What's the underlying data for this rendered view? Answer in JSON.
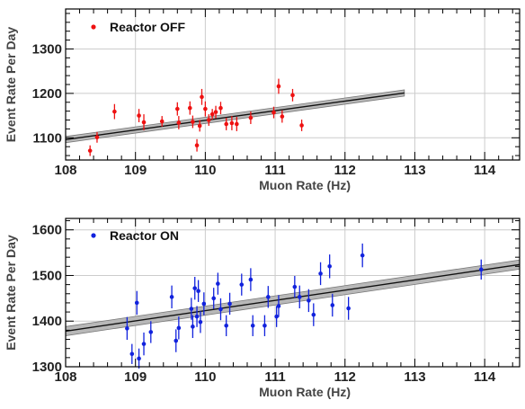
{
  "chart_data": [
    {
      "type": "scatter",
      "xlabel": "Muon Rate (Hz)",
      "ylabel": "Event Rate Per Day",
      "xlim": [
        108,
        114.5
      ],
      "ylim": [
        1050,
        1390
      ],
      "xticks": [
        108,
        109,
        110,
        111,
        112,
        113,
        114
      ],
      "yticks": [
        1100,
        1200,
        1300
      ],
      "grid": true,
      "legend_position": "top-left",
      "series": [
        {
          "name": "Reactor OFF",
          "color": "#ee1111",
          "points": [
            {
              "x": 108.35,
              "y": 1071,
              "err": 12
            },
            {
              "x": 108.45,
              "y": 1101,
              "err": 12
            },
            {
              "x": 108.7,
              "y": 1159,
              "err": 17
            },
            {
              "x": 109.05,
              "y": 1150,
              "err": 15
            },
            {
              "x": 109.12,
              "y": 1135,
              "err": 18
            },
            {
              "x": 109.38,
              "y": 1137,
              "err": 12
            },
            {
              "x": 109.6,
              "y": 1165,
              "err": 15
            },
            {
              "x": 109.62,
              "y": 1134,
              "err": 15
            },
            {
              "x": 109.78,
              "y": 1167,
              "err": 15
            },
            {
              "x": 109.82,
              "y": 1136,
              "err": 14
            },
            {
              "x": 109.88,
              "y": 1083,
              "err": 14
            },
            {
              "x": 109.92,
              "y": 1127,
              "err": 13
            },
            {
              "x": 109.95,
              "y": 1192,
              "err": 18
            },
            {
              "x": 110.0,
              "y": 1165,
              "err": 17
            },
            {
              "x": 110.05,
              "y": 1140,
              "err": 13
            },
            {
              "x": 110.1,
              "y": 1153,
              "err": 12
            },
            {
              "x": 110.15,
              "y": 1158,
              "err": 14
            },
            {
              "x": 110.22,
              "y": 1167,
              "err": 14
            },
            {
              "x": 110.3,
              "y": 1131,
              "err": 14
            },
            {
              "x": 110.38,
              "y": 1133,
              "err": 16
            },
            {
              "x": 110.45,
              "y": 1131,
              "err": 16
            },
            {
              "x": 110.65,
              "y": 1145,
              "err": 14
            },
            {
              "x": 110.98,
              "y": 1157,
              "err": 13
            },
            {
              "x": 111.05,
              "y": 1216,
              "err": 17
            },
            {
              "x": 111.1,
              "y": 1148,
              "err": 14
            },
            {
              "x": 111.25,
              "y": 1196,
              "err": 14
            },
            {
              "x": 111.38,
              "y": 1128,
              "err": 13
            }
          ]
        }
      ],
      "fit": {
        "x_start": 108,
        "x_end": 112.85,
        "y_start": 1096,
        "y_end": 1201,
        "band": 7
      }
    },
    {
      "type": "scatter",
      "xlabel": "Muon Rate (Hz)",
      "ylabel": "Event Rate Per Day",
      "xlim": [
        108,
        114.5
      ],
      "ylim": [
        1300,
        1625
      ],
      "xticks": [
        108,
        109,
        110,
        111,
        112,
        113,
        114
      ],
      "yticks": [
        1300,
        1400,
        1500,
        1600
      ],
      "grid": true,
      "legend_position": "top-left",
      "series": [
        {
          "name": "Reactor ON",
          "color": "#1122dd",
          "points": [
            {
              "x": 108.88,
              "y": 1384,
              "err": 25
            },
            {
              "x": 108.95,
              "y": 1328,
              "err": 22
            },
            {
              "x": 109.02,
              "y": 1440,
              "err": 26
            },
            {
              "x": 109.05,
              "y": 1318,
              "err": 22
            },
            {
              "x": 109.12,
              "y": 1350,
              "err": 25
            },
            {
              "x": 109.22,
              "y": 1376,
              "err": 24
            },
            {
              "x": 109.52,
              "y": 1453,
              "err": 25
            },
            {
              "x": 109.58,
              "y": 1357,
              "err": 25
            },
            {
              "x": 109.62,
              "y": 1385,
              "err": 25
            },
            {
              "x": 109.8,
              "y": 1427,
              "err": 24
            },
            {
              "x": 109.82,
              "y": 1388,
              "err": 25
            },
            {
              "x": 109.85,
              "y": 1472,
              "err": 25
            },
            {
              "x": 109.88,
              "y": 1410,
              "err": 23
            },
            {
              "x": 109.9,
              "y": 1466,
              "err": 24
            },
            {
              "x": 109.93,
              "y": 1398,
              "err": 24
            },
            {
              "x": 109.98,
              "y": 1438,
              "err": 25
            },
            {
              "x": 110.12,
              "y": 1450,
              "err": 23
            },
            {
              "x": 110.18,
              "y": 1482,
              "err": 24
            },
            {
              "x": 110.22,
              "y": 1426,
              "err": 24
            },
            {
              "x": 110.3,
              "y": 1390,
              "err": 23
            },
            {
              "x": 110.35,
              "y": 1438,
              "err": 24
            },
            {
              "x": 110.52,
              "y": 1480,
              "err": 24
            },
            {
              "x": 110.65,
              "y": 1491,
              "err": 25
            },
            {
              "x": 110.68,
              "y": 1390,
              "err": 23
            },
            {
              "x": 110.85,
              "y": 1390,
              "err": 23
            },
            {
              "x": 110.9,
              "y": 1453,
              "err": 24
            },
            {
              "x": 111.02,
              "y": 1410,
              "err": 23
            },
            {
              "x": 111.05,
              "y": 1433,
              "err": 24
            },
            {
              "x": 111.28,
              "y": 1475,
              "err": 24
            },
            {
              "x": 111.35,
              "y": 1453,
              "err": 25
            },
            {
              "x": 111.48,
              "y": 1445,
              "err": 25
            },
            {
              "x": 111.55,
              "y": 1414,
              "err": 25
            },
            {
              "x": 111.65,
              "y": 1504,
              "err": 25
            },
            {
              "x": 111.78,
              "y": 1520,
              "err": 26
            },
            {
              "x": 111.82,
              "y": 1435,
              "err": 25
            },
            {
              "x": 112.05,
              "y": 1428,
              "err": 25
            },
            {
              "x": 112.25,
              "y": 1544,
              "err": 26
            },
            {
              "x": 113.95,
              "y": 1513,
              "err": 22
            }
          ]
        }
      ],
      "fit": {
        "x_start": 108,
        "x_end": 114.5,
        "y_start": 1378,
        "y_end": 1524,
        "band": 10
      }
    }
  ]
}
